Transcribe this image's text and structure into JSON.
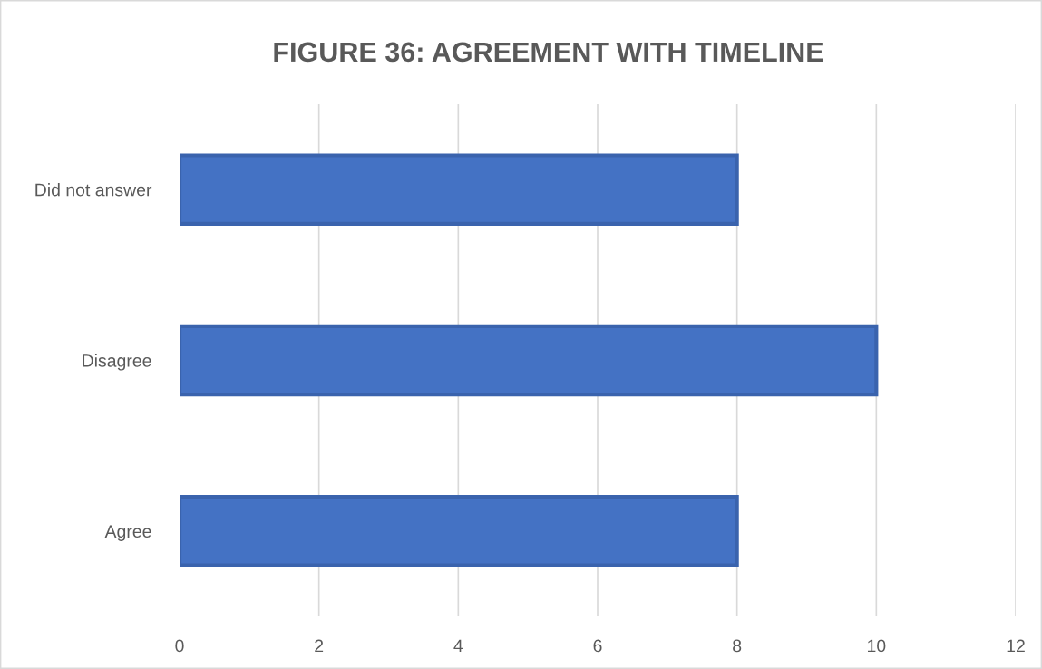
{
  "chart_data": {
    "type": "bar",
    "orientation": "horizontal",
    "title": "FIGURE 36: AGREEMENT WITH TIMELINE",
    "categories": [
      "Did not answer",
      "Disagree",
      "Agree"
    ],
    "values": [
      8,
      10,
      8
    ],
    "color": "#4472c4",
    "xlim": [
      0,
      12
    ],
    "xticks": [
      0,
      2,
      4,
      6,
      8,
      10,
      12
    ],
    "grid": "x"
  }
}
